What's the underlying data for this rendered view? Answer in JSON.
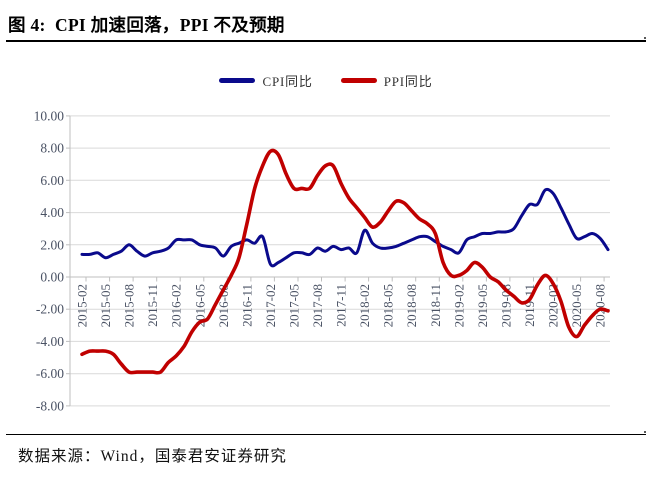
{
  "header": {
    "title": "图 4:  CPI 加速回落，PPI 不及预期"
  },
  "footer": {
    "source": "数据来源：Wind，国泰君安证券研究"
  },
  "chart_data": {
    "type": "line",
    "title": "图 4: CPI 加速回落，PPI 不及预期",
    "xlabel": "",
    "ylabel": "",
    "ylim": [
      -8,
      10
    ],
    "ytick_step": 2,
    "ytick_labels": [
      "10.00",
      "8.00",
      "6.00",
      "4.00",
      "2.00",
      "0.00",
      "-2.00",
      "-4.00",
      "-6.00",
      "-8.00"
    ],
    "grid": "horizontal",
    "legend_position": "top",
    "colors": {
      "cpi": "#0A0A8C",
      "ppi": "#C00000",
      "grid": "#D9D9D9",
      "axis": "#BFBFBF",
      "tick_label": "#4A5264"
    },
    "x": [
      "2015-02",
      "2015-03",
      "2015-04",
      "2015-05",
      "2015-06",
      "2015-07",
      "2015-08",
      "2015-09",
      "2015-10",
      "2015-11",
      "2015-12",
      "2016-01",
      "2016-02",
      "2016-03",
      "2016-04",
      "2016-05",
      "2016-06",
      "2016-07",
      "2016-08",
      "2016-09",
      "2016-10",
      "2016-11",
      "2016-12",
      "2017-01",
      "2017-02",
      "2017-03",
      "2017-04",
      "2017-05",
      "2017-06",
      "2017-07",
      "2017-08",
      "2017-09",
      "2017-10",
      "2017-11",
      "2017-12",
      "2018-01",
      "2018-02",
      "2018-03",
      "2018-04",
      "2018-05",
      "2018-06",
      "2018-07",
      "2018-08",
      "2018-09",
      "2018-10",
      "2018-11",
      "2018-12",
      "2019-01",
      "2019-02",
      "2019-03",
      "2019-04",
      "2019-05",
      "2019-06",
      "2019-07",
      "2019-08",
      "2019-09",
      "2019-10",
      "2019-11",
      "2019-12",
      "2020-01",
      "2020-02",
      "2020-03",
      "2020-04",
      "2020-05",
      "2020-06",
      "2020-07",
      "2020-08",
      "2020-09"
    ],
    "x_tick_labels": [
      "2015-02",
      "2015-05",
      "2015-08",
      "2015-11",
      "2016-02",
      "2016-05",
      "2016-08",
      "2016-11",
      "2017-02",
      "2017-05",
      "2017-08",
      "2017-11",
      "2018-02",
      "2018-05",
      "2018-08",
      "2018-11",
      "2019-02",
      "2019-05",
      "2019-08",
      "2019-11",
      "2020-02",
      "2020-05",
      "2020-08"
    ],
    "series": [
      {
        "name": "CPI同比",
        "color": "#0A0A8C",
        "values": [
          1.4,
          1.4,
          1.5,
          1.2,
          1.4,
          1.6,
          2.0,
          1.6,
          1.3,
          1.5,
          1.6,
          1.8,
          2.3,
          2.3,
          2.3,
          2.0,
          1.9,
          1.8,
          1.3,
          1.9,
          2.1,
          2.3,
          2.1,
          2.5,
          0.8,
          0.9,
          1.2,
          1.5,
          1.5,
          1.4,
          1.8,
          1.6,
          1.9,
          1.7,
          1.8,
          1.5,
          2.9,
          2.1,
          1.8,
          1.8,
          1.9,
          2.1,
          2.3,
          2.5,
          2.5,
          2.2,
          1.9,
          1.7,
          1.5,
          2.3,
          2.5,
          2.7,
          2.7,
          2.8,
          2.8,
          3.0,
          3.8,
          4.5,
          4.5,
          5.4,
          5.2,
          4.3,
          3.3,
          2.4,
          2.5,
          2.7,
          2.4,
          1.7
        ]
      },
      {
        "name": "PPI同比",
        "color": "#C00000",
        "values": [
          -4.8,
          -4.6,
          -4.6,
          -4.6,
          -4.8,
          -5.4,
          -5.9,
          -5.9,
          -5.9,
          -5.9,
          -5.9,
          -5.3,
          -4.9,
          -4.3,
          -3.4,
          -2.8,
          -2.6,
          -1.7,
          -0.8,
          0.1,
          1.2,
          3.3,
          5.5,
          6.9,
          7.8,
          7.6,
          6.4,
          5.5,
          5.5,
          5.5,
          6.3,
          6.9,
          6.9,
          5.8,
          4.9,
          4.3,
          3.7,
          3.1,
          3.4,
          4.1,
          4.7,
          4.6,
          4.1,
          3.6,
          3.3,
          2.7,
          0.9,
          0.1,
          0.1,
          0.4,
          0.9,
          0.6,
          0.0,
          -0.3,
          -0.8,
          -1.2,
          -1.6,
          -1.4,
          -0.5,
          0.1,
          -0.4,
          -1.5,
          -3.1,
          -3.7,
          -3.0,
          -2.4,
          -2.0,
          -2.1
        ]
      }
    ]
  }
}
